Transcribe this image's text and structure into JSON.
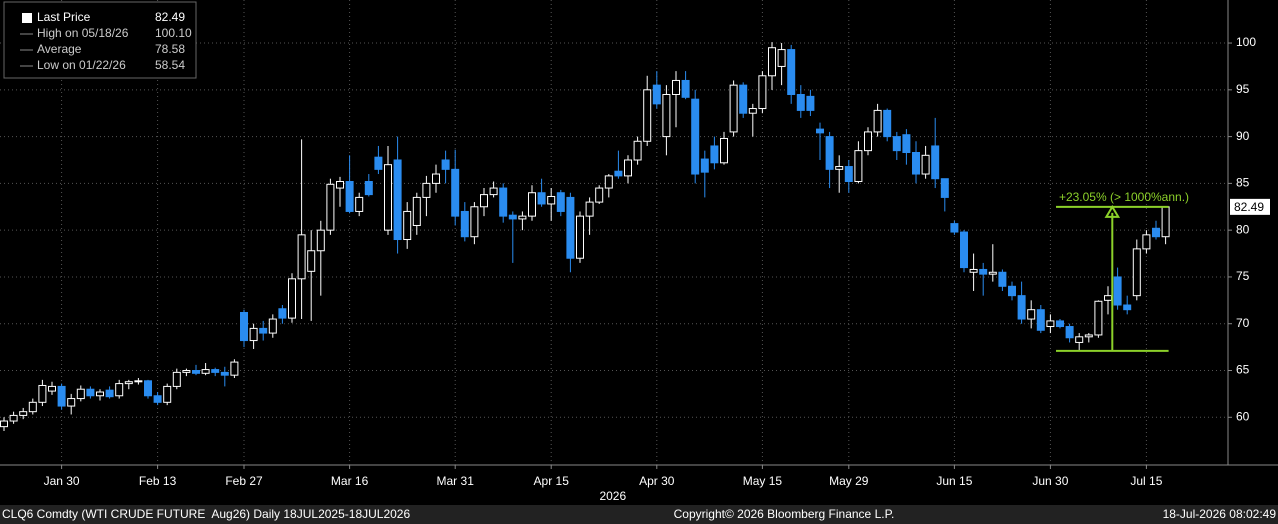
{
  "chart_data": {
    "type": "candlestick",
    "categories": [
      null,
      null,
      null,
      null,
      null,
      null,
      "Jan 30",
      null,
      null,
      null,
      null,
      null,
      null,
      null,
      null,
      null,
      "Feb 13",
      null,
      null,
      null,
      null,
      null,
      null,
      null,
      null,
      "Feb 27",
      null,
      null,
      null,
      null,
      null,
      null,
      null,
      null,
      null,
      null,
      "Mar 16",
      null,
      null,
      null,
      null,
      null,
      null,
      null,
      null,
      null,
      null,
      "Mar 31",
      null,
      null,
      null,
      null,
      null,
      null,
      null,
      null,
      null,
      "Apr 15",
      null,
      null,
      null,
      null,
      null,
      null,
      null,
      null,
      null,
      null,
      "Apr 30",
      null,
      null,
      null,
      null,
      null,
      null,
      null,
      null,
      null,
      null,
      "May 15",
      null,
      null,
      null,
      null,
      null,
      null,
      null,
      null,
      "May 29",
      null,
      null,
      null,
      null,
      null,
      null,
      null,
      null,
      null,
      null,
      "Jun 15",
      null,
      null,
      null,
      null,
      null,
      null,
      null,
      null,
      null,
      "Jun 30",
      null,
      null,
      null,
      null,
      null,
      null,
      null,
      null,
      null,
      "Jul 15",
      null,
      null
    ],
    "x_axis_year": "2026",
    "open": [
      59,
      59.6,
      60.2,
      60.6,
      61.6,
      62.8,
      63.3,
      61.2,
      62.0,
      63.0,
      62.3,
      62.9,
      62.3,
      63.6,
      63.8,
      63.9,
      62.3,
      61.6,
      63.3,
      64.8,
      65.0,
      64.7,
      65.1,
      64.8,
      64.5,
      71.2,
      68.2,
      69.5,
      69.0,
      71.6,
      70.6,
      74.8,
      75.6,
      77.8,
      80,
      84.5,
      85.2,
      82,
      85.2,
      87.8,
      80,
      87.5,
      79,
      80.5,
      83.5,
      85,
      87.5,
      86.5,
      82,
      79.3,
      82.5,
      83.8,
      84.5,
      81.6,
      81.2,
      81.5,
      84,
      82.8,
      84,
      83.5,
      77,
      81.5,
      83,
      84.5,
      86.3,
      85.8,
      87.5,
      89.5,
      95.5,
      90,
      94.5,
      96,
      94,
      87.6,
      89,
      87.2,
      90.5,
      95.5,
      92.5,
      93,
      96.5,
      97.5,
      99.3,
      94.5,
      94.3,
      90.8,
      90,
      86.5,
      86.8,
      85.2,
      88.5,
      90.5,
      92.8,
      90,
      90.2,
      88.3,
      86,
      89,
      85.5,
      80.7,
      79.8,
      75.5,
      75.8,
      75.3,
      75.5,
      74,
      73,
      70.5,
      71.5,
      69.7,
      70.3,
      69.7,
      68,
      68.6,
      68.8,
      72.5,
      75,
      72,
      73,
      78,
      80.2,
      79.3
    ],
    "high": [
      60,
      60.6,
      61,
      62,
      64,
      63.8,
      63.6,
      62.5,
      63.4,
      63.3,
      63,
      63.3,
      64,
      64,
      64.2,
      64,
      62.7,
      63.6,
      65.2,
      65.2,
      65.6,
      65.8,
      65.3,
      65.4,
      66.2,
      71.5,
      70,
      70.3,
      71,
      72,
      75.4,
      89.7,
      80,
      81,
      85.5,
      85.7,
      88,
      84,
      86,
      89,
      89,
      90,
      83,
      84,
      85.8,
      87,
      88.5,
      88.6,
      83,
      83,
      84.5,
      85.2,
      85,
      82,
      82,
      84.8,
      85.5,
      84.5,
      84.3,
      84,
      82,
      83.5,
      84.8,
      86,
      88.5,
      88,
      90,
      96.5,
      97,
      95.5,
      97,
      97,
      95,
      88.5,
      90,
      90.5,
      96,
      95.8,
      93.5,
      97,
      100.1,
      100,
      99.8,
      95.5,
      95,
      91.5,
      90.5,
      88,
      87.5,
      89.5,
      91,
      93.5,
      93,
      90.5,
      90.8,
      89.5,
      89,
      92,
      85.5,
      81,
      80,
      77.5,
      76.5,
      78.5,
      75.8,
      74.5,
      74.5,
      72.5,
      72,
      71,
      70.5,
      70,
      69,
      69,
      72.5,
      74,
      76,
      73,
      79,
      80,
      81,
      82.5
    ],
    "low": [
      58.54,
      59.3,
      59.8,
      60.3,
      61.2,
      62.4,
      60.8,
      60.3,
      61.7,
      62,
      61.8,
      62.0,
      62,
      63,
      63.5,
      62,
      61.3,
      61.3,
      63,
      64.4,
      64.5,
      64.5,
      64.4,
      63.3,
      64.2,
      67.5,
      67.3,
      68.2,
      68.5,
      70,
      70.1,
      70.5,
      70.3,
      73,
      79.5,
      82.5,
      81.8,
      81.5,
      83.6,
      86,
      79.5,
      77.5,
      78,
      79.5,
      81.5,
      84,
      85,
      80.5,
      78.8,
      78.5,
      81.5,
      83.5,
      80.8,
      76.5,
      80,
      81,
      82.5,
      81,
      81.5,
      75.5,
      76.5,
      79.5,
      82.8,
      83.5,
      85.5,
      85,
      87,
      89,
      93,
      88,
      91,
      94,
      85,
      83.5,
      86.5,
      87,
      90,
      92,
      90,
      92.5,
      95,
      95.5,
      93.5,
      92,
      92.2,
      87.5,
      84.5,
      84,
      84,
      85,
      88,
      90,
      89.5,
      87.5,
      87,
      85,
      85.5,
      84.5,
      82,
      79.5,
      75.5,
      73.5,
      73,
      74.5,
      73.5,
      72.5,
      70,
      69.5,
      69,
      69,
      69.5,
      68,
      67.1,
      68,
      68.5,
      71,
      71.5,
      71,
      72.5,
      77.5,
      79,
      78.5
    ],
    "close": [
      59.6,
      60.2,
      60.6,
      61.6,
      63.4,
      63.3,
      61.2,
      62.0,
      63.0,
      62.3,
      62.7,
      62.2,
      63.6,
      63.8,
      63.9,
      62.3,
      61.6,
      63.3,
      64.8,
      65.0,
      64.7,
      65.1,
      64.8,
      64.5,
      65.9,
      68.2,
      69.5,
      69.0,
      70.5,
      70.6,
      74.8,
      79.5,
      77.8,
      80,
      84.9,
      85.2,
      82,
      83.5,
      83.8,
      86.5,
      87,
      79,
      82,
      83.5,
      85,
      86,
      86.5,
      81.5,
      79.3,
      82.5,
      83.8,
      84.5,
      81.5,
      81.2,
      81.5,
      84,
      82.8,
      83.6,
      82,
      77,
      81.5,
      83,
      84.5,
      85.8,
      85.8,
      87.5,
      89.5,
      95,
      93.5,
      94.5,
      96,
      94.2,
      86,
      86.2,
      87.2,
      89.8,
      95.5,
      92.5,
      93,
      96.5,
      99.5,
      99.3,
      94.5,
      92.8,
      92.8,
      90.4,
      86.5,
      86.8,
      85.2,
      88.5,
      90.5,
      92.8,
      90,
      88.5,
      88.3,
      86,
      88,
      85.5,
      83.5,
      79.8,
      76,
      75.8,
      75.3,
      75.5,
      74,
      73,
      70.5,
      71.5,
      69.3,
      70.3,
      69.7,
      68.5,
      68.6,
      68.8,
      72.4,
      73,
      72,
      71.5,
      78,
      79.5,
      79.3,
      82.49
    ],
    "up_color": "#000000",
    "down_color": "#2a8cf0",
    "ylim": [
      54.9,
      104.6
    ],
    "yticks": [
      60,
      65,
      70,
      75,
      80,
      85,
      90,
      95,
      100
    ],
    "grid": true,
    "last_price": 82.49,
    "legend": [
      {
        "label": "Last Price",
        "value": 82.49
      },
      {
        "label": "High on 05/18/26",
        "value": 100.1,
        "value_label": "100.10"
      },
      {
        "label": "Average",
        "value": 78.58
      },
      {
        "label": "Low on 01/22/26",
        "value": 58.54
      }
    ],
    "measure": {
      "label": "+23.05% (> 1000%ann.)",
      "start": 67.1,
      "end": 82.49,
      "color": "#8cd12a"
    }
  },
  "footer": {
    "left": "CLQ6 Comdty (WTI CRUDE FUTURE  Aug26) Daily 18JUL2025-18JUL2026",
    "center": "Copyright© 2026 Bloomberg Finance L.P.",
    "right": "18-Jul-2026 08:02:49"
  }
}
